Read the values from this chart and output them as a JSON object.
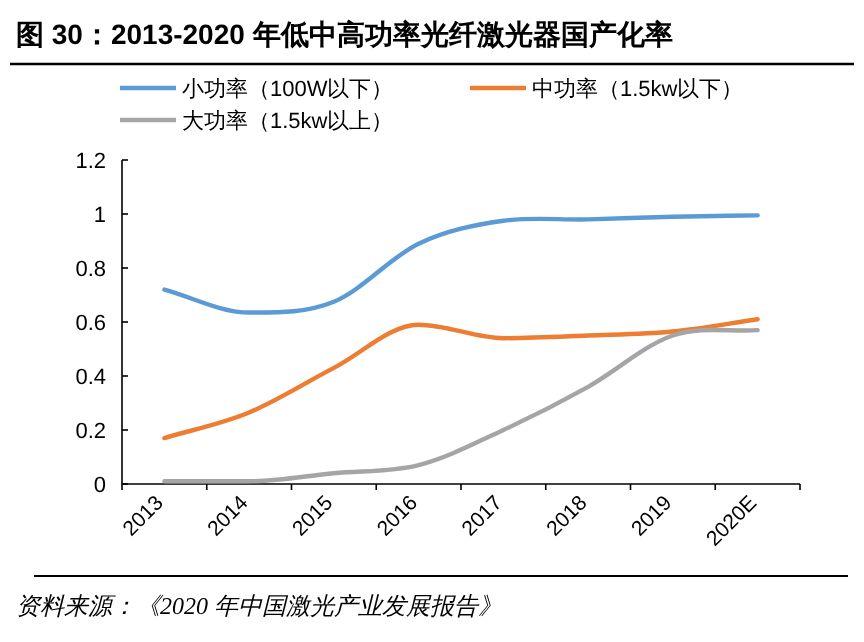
{
  "chart_data": {
    "type": "line",
    "title": "图 30：2013-2020 年低中高功率光纤激光器国产化率",
    "categories": [
      "2013",
      "2014",
      "2015",
      "2016",
      "2017",
      "2018",
      "2019",
      "2020E"
    ],
    "series": [
      {
        "name": "小功率（100W以下）",
        "color": "#5b9bd5",
        "values": [
          0.72,
          0.635,
          0.675,
          0.89,
          0.975,
          0.98,
          0.99,
          0.995
        ]
      },
      {
        "name": "中功率（1.5kw以下）",
        "color": "#ed7d31",
        "values": [
          0.17,
          0.265,
          0.43,
          0.59,
          0.54,
          0.55,
          0.565,
          0.61
        ]
      },
      {
        "name": "大功率（1.5kw以上）",
        "color": "#a5a5a5",
        "values": [
          0.01,
          0.01,
          0.04,
          0.07,
          0.2,
          0.36,
          0.55,
          0.57
        ]
      }
    ],
    "ylim": [
      0,
      1.2
    ],
    "yticks": [
      0,
      0.2,
      0.4,
      0.6,
      0.8,
      1,
      1.2
    ],
    "grid": false,
    "legend": "top",
    "marker": "none",
    "line_style": "solid",
    "annotations": [
      "资料来源：《2020 年中国激光产业发展报告》"
    ]
  }
}
